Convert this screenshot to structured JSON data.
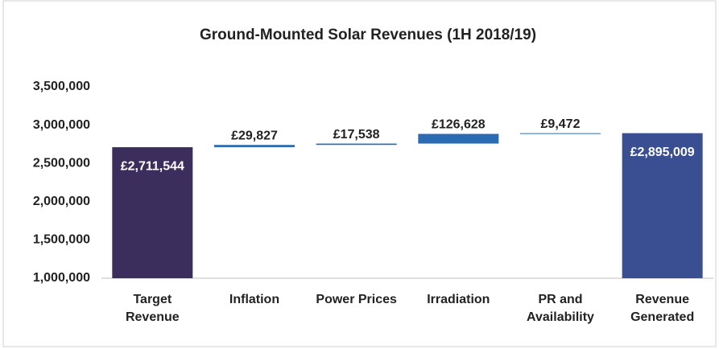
{
  "chart_data": {
    "type": "waterfall",
    "title": "Ground-Mounted Solar Revenues  (1H 2018/19)",
    "categories": [
      "Target Revenue",
      "Inflation",
      "Power Prices",
      "Irradiation",
      "PR and Availability",
      "Revenue Generated"
    ],
    "values": [
      2711544,
      29827,
      17538,
      126628,
      9472,
      2895009
    ],
    "value_labels": [
      "£2,711,544",
      "£29,827",
      "£17,538",
      "£126,628",
      "£9,472",
      "£2,895,009"
    ],
    "measure": [
      "total",
      "relative",
      "relative",
      "relative",
      "relative",
      "total"
    ],
    "colors": [
      "#3b2d5c",
      "#2b6bb3",
      "#2b6bb3",
      "#2b6bb3",
      "#2b6bb3",
      "#3a4f91"
    ],
    "ylim": [
      1000000,
      3500000
    ],
    "yticks": [
      {
        "value": 1000000,
        "label": "1,000,000"
      },
      {
        "value": 1500000,
        "label": "1,500,000"
      },
      {
        "value": 2000000,
        "label": "2,000,000"
      },
      {
        "value": 2500000,
        "label": "2,500,000"
      },
      {
        "value": 3000000,
        "label": "3,000,000"
      },
      {
        "value": 3500000,
        "label": "3,500,000"
      }
    ]
  }
}
